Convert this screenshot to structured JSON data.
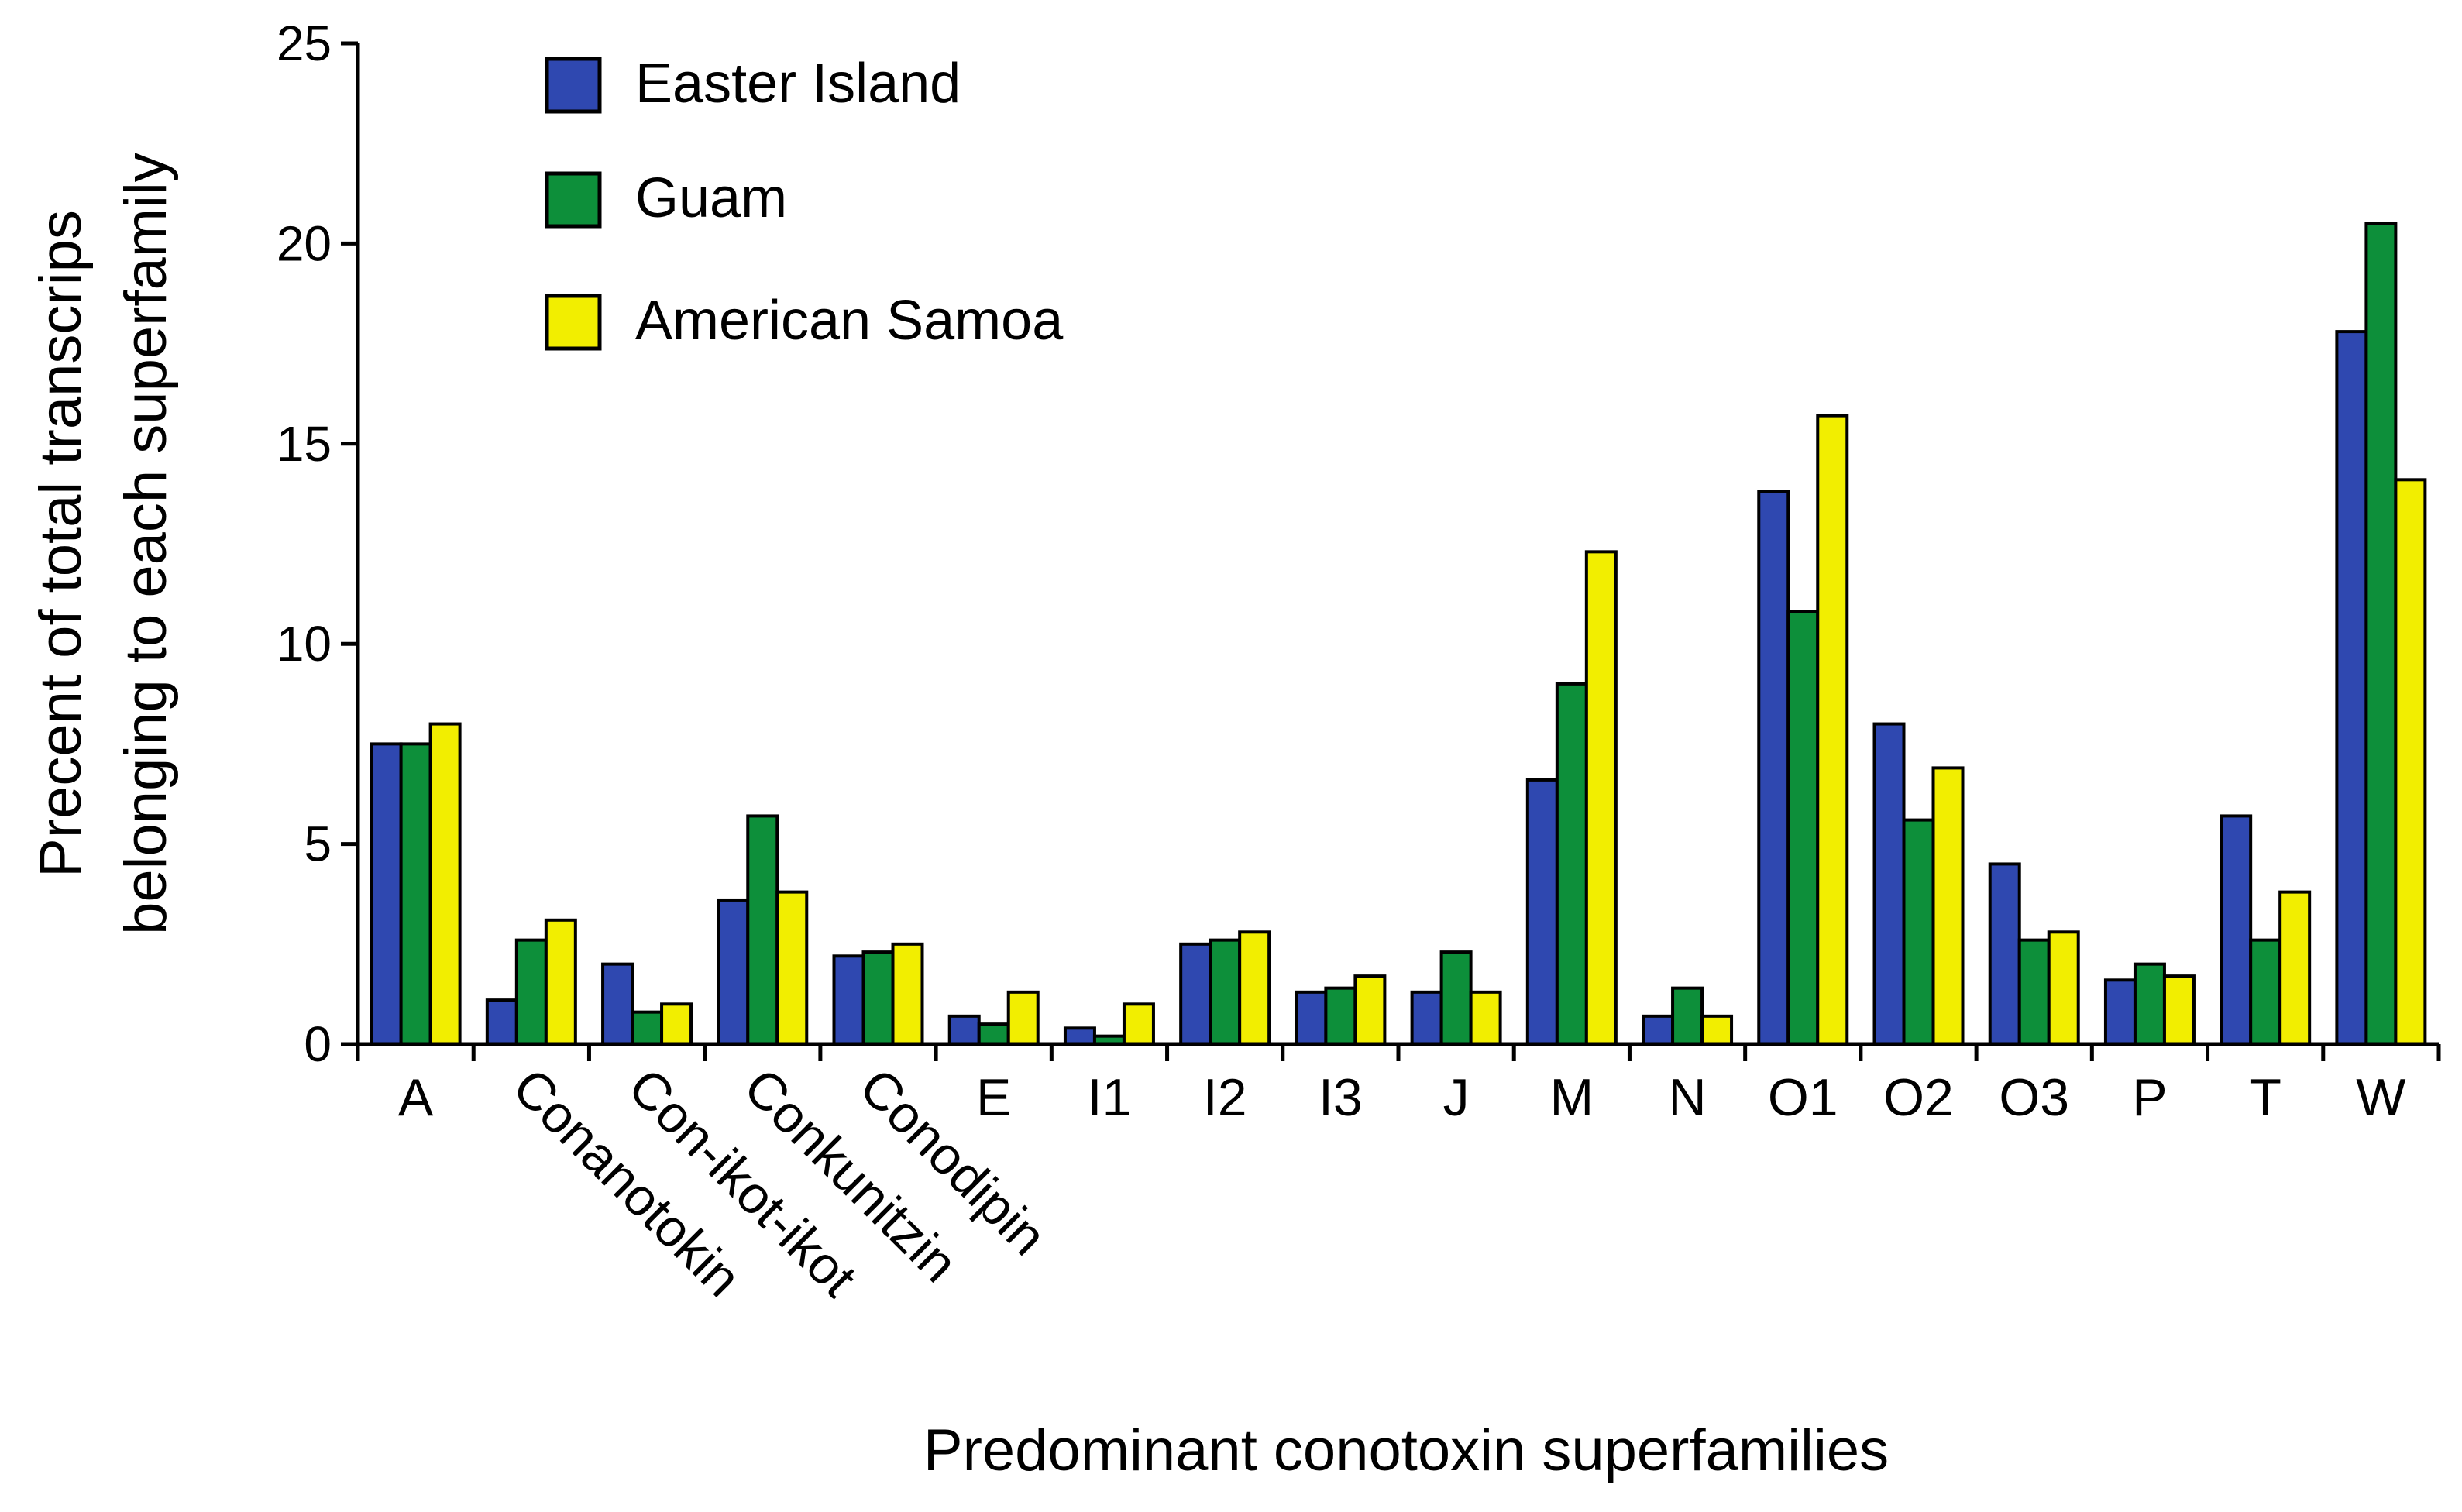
{
  "chart_data": {
    "type": "bar",
    "title": "",
    "xlabel": "Predominant conotoxin superfamilies",
    "ylabel_lines": [
      "Precent of total transcrips",
      "belonging to each superfamily"
    ],
    "ylim": [
      0,
      25
    ],
    "yticks": [
      0,
      5,
      10,
      15,
      20,
      25
    ],
    "legend_position": "top-left",
    "categories": [
      "A",
      "Conanotokin",
      "Con-ikot-ikot",
      "Conkunitzin",
      "Conodipin",
      "E",
      "I1",
      "I2",
      "I3",
      "J",
      "M",
      "N",
      "O1",
      "O2",
      "O3",
      "P",
      "T",
      "W"
    ],
    "rotated_categories": [
      "Conanotokin",
      "Con-ikot-ikot",
      "Conkunitzin",
      "Conodipin"
    ],
    "series": [
      {
        "name": "Easter Island",
        "color": "#2f48b0",
        "values": [
          7.5,
          1.1,
          2.0,
          3.6,
          2.2,
          0.7,
          0.4,
          2.5,
          1.3,
          1.3,
          6.6,
          0.7,
          13.8,
          8.0,
          4.5,
          1.6,
          5.7,
          17.8
        ]
      },
      {
        "name": "Guam",
        "color": "#0d8f3a",
        "values": [
          7.5,
          2.6,
          0.8,
          5.7,
          2.3,
          0.5,
          0.2,
          2.6,
          1.4,
          2.3,
          9.0,
          1.4,
          10.8,
          5.6,
          2.6,
          2.0,
          2.6,
          20.5
        ]
      },
      {
        "name": "American Samoa",
        "color": "#f2ee00",
        "values": [
          8.0,
          3.1,
          1.0,
          3.8,
          2.5,
          1.3,
          1.0,
          2.8,
          1.7,
          1.3,
          12.3,
          0.7,
          15.7,
          6.9,
          2.8,
          1.7,
          3.8,
          14.1
        ]
      }
    ]
  }
}
